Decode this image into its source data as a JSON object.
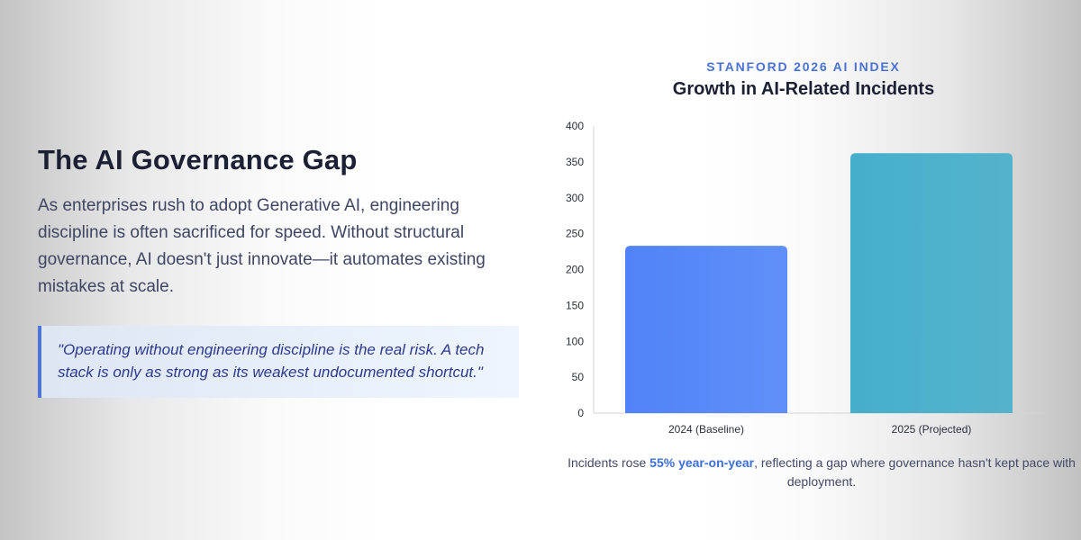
{
  "left": {
    "heading": "The AI Governance Gap",
    "body": "As enterprises rush to adopt Generative AI, engineering discipline is often sacrificed for speed. Without structural governance, AI doesn't just innovate—it automates existing mistakes at scale.",
    "quote": "\"Operating without engineering discipline is the real risk. A tech stack is only as strong as its weakest undocumented shortcut.\""
  },
  "colors": {
    "accent": "#4a72d6",
    "quote_border": "#4d74d8",
    "bar_baseline": "#4f83f7",
    "bar_projected": "#45aecb"
  },
  "chart_data": {
    "type": "bar",
    "supertitle": "STANFORD 2026 AI INDEX",
    "title": "Growth in AI-Related Incidents",
    "categories": [
      "2024 (Baseline)",
      "2025 (Projected)"
    ],
    "values": [
      233,
      362
    ],
    "ylim": [
      0,
      400
    ],
    "yticks": [
      0,
      50,
      100,
      150,
      200,
      250,
      300,
      350,
      400
    ],
    "grid": false,
    "legend": "none"
  },
  "caption": {
    "before": "Incidents rose ",
    "highlight": "55% year-on-year",
    "after": ", reflecting a gap where governance hasn't kept pace with deployment."
  }
}
